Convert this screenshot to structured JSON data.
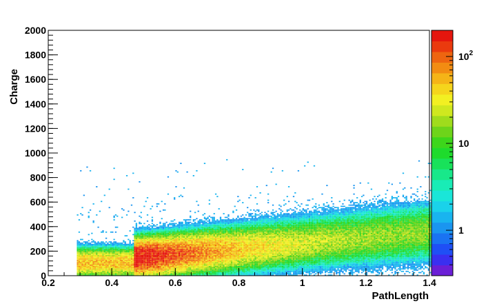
{
  "chart_data": {
    "type": "heatmap",
    "title": "",
    "xlabel": "PathLength",
    "ylabel": "Charge",
    "xlim": [
      0.2,
      1.4
    ],
    "ylim": [
      0,
      2000
    ],
    "x_ticks": [
      {
        "value": 0.2,
        "label": "0.2"
      },
      {
        "value": 0.4,
        "label": "0.4"
      },
      {
        "value": 0.6,
        "label": "0.6"
      },
      {
        "value": 0.8,
        "label": "0.8"
      },
      {
        "value": 1.0,
        "label": "1"
      },
      {
        "value": 1.2,
        "label": "1.2"
      },
      {
        "value": 1.4,
        "label": "1.4"
      }
    ],
    "y_ticks": [
      {
        "value": 0,
        "label": "0"
      },
      {
        "value": 200,
        "label": "200"
      },
      {
        "value": 400,
        "label": "400"
      },
      {
        "value": 600,
        "label": "600"
      },
      {
        "value": 800,
        "label": "800"
      },
      {
        "value": 1000,
        "label": "1000"
      },
      {
        "value": 1200,
        "label": "1200"
      },
      {
        "value": 1400,
        "label": "1400"
      },
      {
        "value": 1600,
        "label": "1600"
      },
      {
        "value": 1800,
        "label": "1800"
      },
      {
        "value": 2000,
        "label": "2000"
      }
    ],
    "colorbar": {
      "scale": "log",
      "range": [
        0.3,
        200
      ],
      "ticks": [
        {
          "value": 1,
          "base": "1",
          "exp": ""
        },
        {
          "value": 10,
          "base": "10",
          "exp": ""
        },
        {
          "value": 100,
          "base": "10",
          "exp": "2"
        }
      ],
      "palette": [
        "#6b1fd6",
        "#3a2ff0",
        "#1f4ff5",
        "#1a73f2",
        "#1a95f0",
        "#19b4ef",
        "#1ad2ea",
        "#1ae6d8",
        "#19ecb6",
        "#18e88a",
        "#18e25a",
        "#1edb2c",
        "#3dd61b",
        "#6ed41a",
        "#a0dc1c",
        "#cfe81f",
        "#f2f022",
        "#f5d51c",
        "#f5b417",
        "#f28c12",
        "#ee6510",
        "#ea3a0e",
        "#e5160e"
      ]
    },
    "bins": {
      "x_width": 0.005,
      "y_width": 10
    },
    "density_regions": [
      {
        "x_range": [
          0.29,
          0.47
        ],
        "charge_mean": 100,
        "charge_spread": 60,
        "peak_counts": 60
      },
      {
        "x_range": [
          0.47,
          1.4
        ],
        "charge_mean": 150,
        "charge_spread": 90,
        "peak_counts": 200
      }
    ],
    "notes": "2D histogram: counts per (PathLength, Charge) bin, color coded on log scale. Hot spot near PathLength 0.47-0.55, Charge ~130. Band mean rises with PathLength to ~350 at 1.4."
  }
}
